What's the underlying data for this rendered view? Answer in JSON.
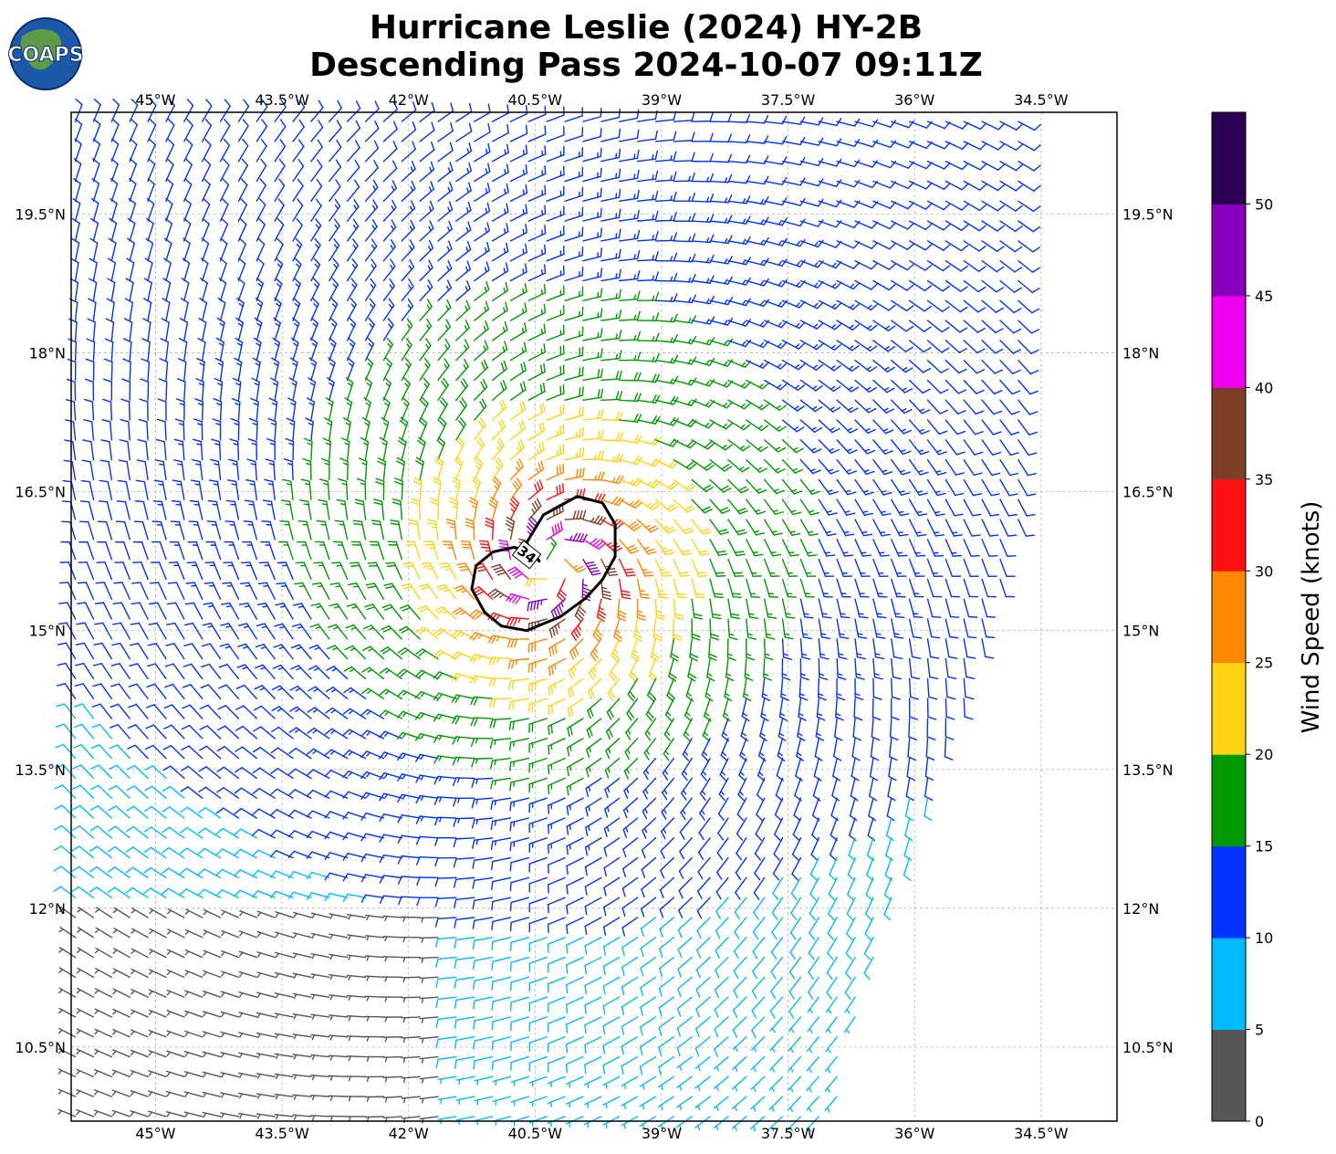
{
  "logo": {
    "text": "COAPS"
  },
  "title": {
    "line1": "Hurricane Leslie (2024) HY-2B",
    "line2": "Descending Pass 2024-10-07 09:11Z"
  },
  "map": {
    "lon_range": [
      -46.0,
      -33.6
    ],
    "lat_range": [
      9.7,
      20.6
    ],
    "lon_ticks": [
      {
        "value": -45.0,
        "label": "45°W"
      },
      {
        "value": -43.5,
        "label": "43.5°W"
      },
      {
        "value": -42.0,
        "label": "42°W"
      },
      {
        "value": -40.5,
        "label": "40.5°W"
      },
      {
        "value": -39.0,
        "label": "39°W"
      },
      {
        "value": -37.5,
        "label": "37.5°W"
      },
      {
        "value": -36.0,
        "label": "36°W"
      },
      {
        "value": -34.5,
        "label": "34.5°W"
      }
    ],
    "lat_ticks": [
      {
        "value": 19.5,
        "label": "19.5°N"
      },
      {
        "value": 18.0,
        "label": "18°N"
      },
      {
        "value": 16.5,
        "label": "16.5°N"
      },
      {
        "value": 15.0,
        "label": "15°N"
      },
      {
        "value": 13.5,
        "label": "13.5°N"
      },
      {
        "value": 12.0,
        "label": "12°N"
      },
      {
        "value": 10.5,
        "label": "10.5°N"
      }
    ],
    "grid": true,
    "center": {
      "lon": -40.3,
      "lat": 15.7
    },
    "contour": {
      "label": "34",
      "level_knots": 34,
      "points": [
        [
          -40.45,
          15.75
        ],
        [
          -40.6,
          15.95
        ],
        [
          -40.4,
          16.25
        ],
        [
          -40.0,
          16.45
        ],
        [
          -39.7,
          16.38
        ],
        [
          -39.55,
          16.15
        ],
        [
          -39.55,
          15.8
        ],
        [
          -39.7,
          15.55
        ],
        [
          -39.9,
          15.35
        ],
        [
          -40.2,
          15.15
        ],
        [
          -40.6,
          15.0
        ],
        [
          -40.9,
          15.05
        ],
        [
          -41.1,
          15.2
        ],
        [
          -41.25,
          15.45
        ],
        [
          -41.2,
          15.7
        ],
        [
          -41.0,
          15.85
        ],
        [
          -40.75,
          15.9
        ],
        [
          -40.55,
          15.85
        ]
      ]
    },
    "swath_edge": [
      [
        -34.6,
        16.5
      ],
      [
        -35.1,
        15.0
      ],
      [
        -35.6,
        13.6
      ],
      [
        -36.0,
        12.5
      ],
      [
        -36.6,
        11.0
      ],
      [
        -36.9,
        9.7
      ]
    ]
  },
  "colorbar": {
    "label": "Wind Speed (knots)",
    "bounds": [
      0,
      5,
      10,
      15,
      20,
      25,
      30,
      35,
      40,
      45,
      50,
      55
    ],
    "tick_labels": [
      "0",
      "5",
      "10",
      "15",
      "20",
      "25",
      "30",
      "35",
      "40",
      "45",
      "50"
    ],
    "colors": [
      "#565656",
      "#00bbff",
      "#0033ff",
      "#009900",
      "#ffd311",
      "#ff8800",
      "#ff1111",
      "#7e3f26",
      "#ee00ee",
      "#8800bb",
      "#2b0055"
    ]
  }
}
